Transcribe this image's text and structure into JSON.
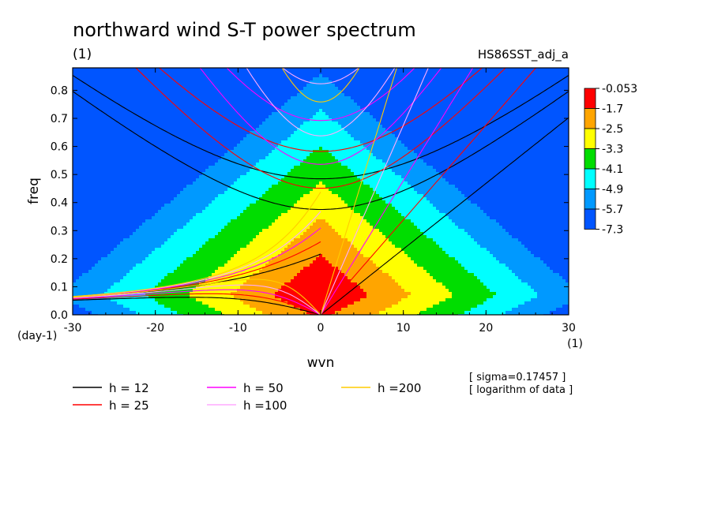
{
  "chart_data": {
    "type": "heatmap",
    "title": "northward wind S-T power spectrum",
    "subtitle_left": "(1)",
    "subtitle_right": "HS86SST_adj_a",
    "xlabel": "wvn",
    "ylabel": "freq",
    "x_unit": "(1)",
    "y_unit": "(day-1)",
    "xlim": [
      -30,
      30
    ],
    "ylim": [
      0,
      0.88
    ],
    "x_ticks": [
      -30,
      -20,
      -10,
      0,
      10,
      20,
      30
    ],
    "x_tick_labels": [
      "-30",
      "-20",
      "-10",
      "0",
      "10",
      "20",
      "30"
    ],
    "y_ticks": [
      0.0,
      0.1,
      0.2,
      0.3,
      0.4,
      0.5,
      0.6,
      0.7,
      0.8
    ],
    "y_tick_labels": [
      "0.0",
      "0.1",
      "0.2",
      "0.3",
      "0.4",
      "0.5",
      "0.6",
      "0.7",
      "0.8"
    ],
    "field_model": {
      "description_values": "log power",
      "center_x": 0,
      "center_y": 0.07,
      "peak": -0.8,
      "decay_x": 0.155,
      "decay_y": 6.2,
      "asym_x": 0.12,
      "asym_y": 0.45
    },
    "colorbar": {
      "labels": [
        "-0.053",
        "-1.7",
        "-2.5",
        "-3.3",
        "-4.1",
        "-4.9",
        "-5.7",
        "-7.3"
      ],
      "levels": [
        -1.7,
        -2.5,
        -3.3,
        -4.1,
        -4.9,
        -5.7
      ],
      "colors": [
        "#ff0000",
        "#ffa500",
        "#ffff00",
        "#00dd00",
        "#00ffff",
        "#0099ff",
        "#0055ff"
      ]
    },
    "dispersion_curves": [
      {
        "h": 12,
        "label": "h = 12",
        "color": "#000000"
      },
      {
        "h": 25,
        "label": "h = 25",
        "color": "#ff0000"
      },
      {
        "h": 50,
        "label": "h = 50",
        "color": "#ff00ff"
      },
      {
        "h": 100,
        "label": "h =100",
        "color": "#ffaaff"
      },
      {
        "h": 200,
        "label": "h =200",
        "color": "#ffcc00"
      }
    ],
    "annotations": [
      "[ sigma=0.17457 ]",
      "[ logarithm of data ]"
    ]
  }
}
